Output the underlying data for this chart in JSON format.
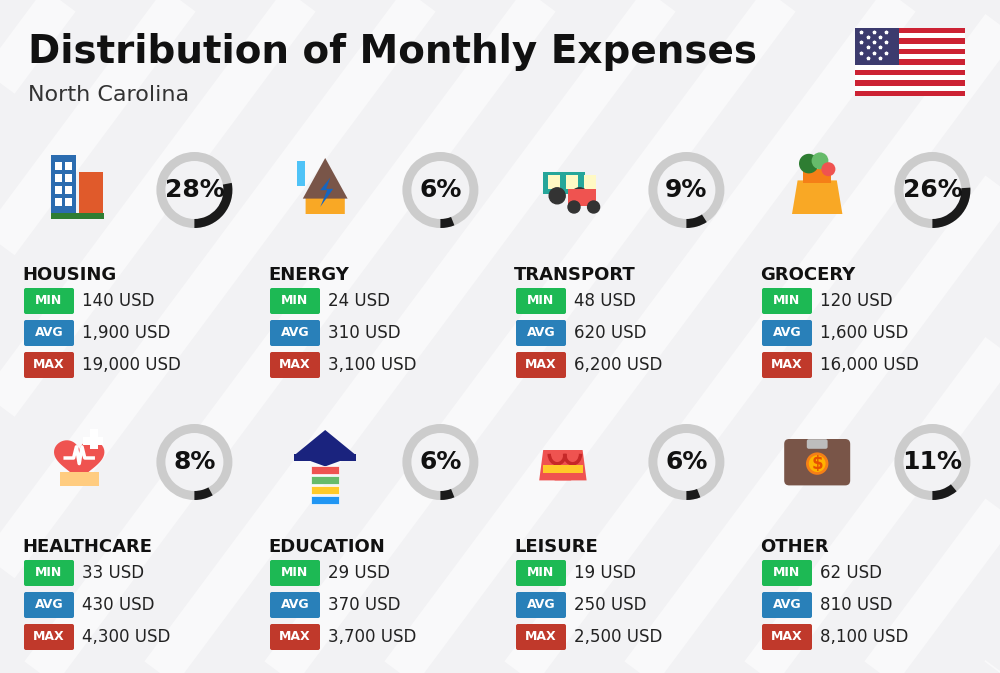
{
  "title": "Distribution of Monthly Expenses",
  "subtitle": "North Carolina",
  "background_color": "#f2f2f4",
  "categories": [
    {
      "name": "HOUSING",
      "percent": 28,
      "min": "140 USD",
      "avg": "1,900 USD",
      "max": "19,000 USD",
      "row": 0,
      "col": 0,
      "icon_char": "🏢"
    },
    {
      "name": "ENERGY",
      "percent": 6,
      "min": "24 USD",
      "avg": "310 USD",
      "max": "3,100 USD",
      "row": 0,
      "col": 1,
      "icon_char": "⚡"
    },
    {
      "name": "TRANSPORT",
      "percent": 9,
      "min": "48 USD",
      "avg": "620 USD",
      "max": "6,200 USD",
      "row": 0,
      "col": 2,
      "icon_char": "🚌"
    },
    {
      "name": "GROCERY",
      "percent": 26,
      "min": "120 USD",
      "avg": "1,600 USD",
      "max": "16,000 USD",
      "row": 0,
      "col": 3,
      "icon_char": "🛒"
    },
    {
      "name": "HEALTHCARE",
      "percent": 8,
      "min": "33 USD",
      "avg": "430 USD",
      "max": "4,300 USD",
      "row": 1,
      "col": 0,
      "icon_char": "❤"
    },
    {
      "name": "EDUCATION",
      "percent": 6,
      "min": "29 USD",
      "avg": "370 USD",
      "max": "3,700 USD",
      "row": 1,
      "col": 1,
      "icon_char": "🎓"
    },
    {
      "name": "LEISURE",
      "percent": 6,
      "min": "19 USD",
      "avg": "250 USD",
      "max": "2,500 USD",
      "row": 1,
      "col": 2,
      "icon_char": "🛍"
    },
    {
      "name": "OTHER",
      "percent": 11,
      "min": "62 USD",
      "avg": "810 USD",
      "max": "8,100 USD",
      "row": 1,
      "col": 3,
      "icon_char": "💰"
    }
  ],
  "color_min": "#1db954",
  "color_avg": "#2980b9",
  "color_max": "#c0392b",
  "color_ring_filled": "#1a1a1a",
  "color_ring_empty": "#cccccc",
  "title_fontsize": 28,
  "subtitle_fontsize": 16,
  "category_fontsize": 13,
  "value_fontsize": 12,
  "percent_fontsize": 18,
  "icon_fontsize": 34
}
